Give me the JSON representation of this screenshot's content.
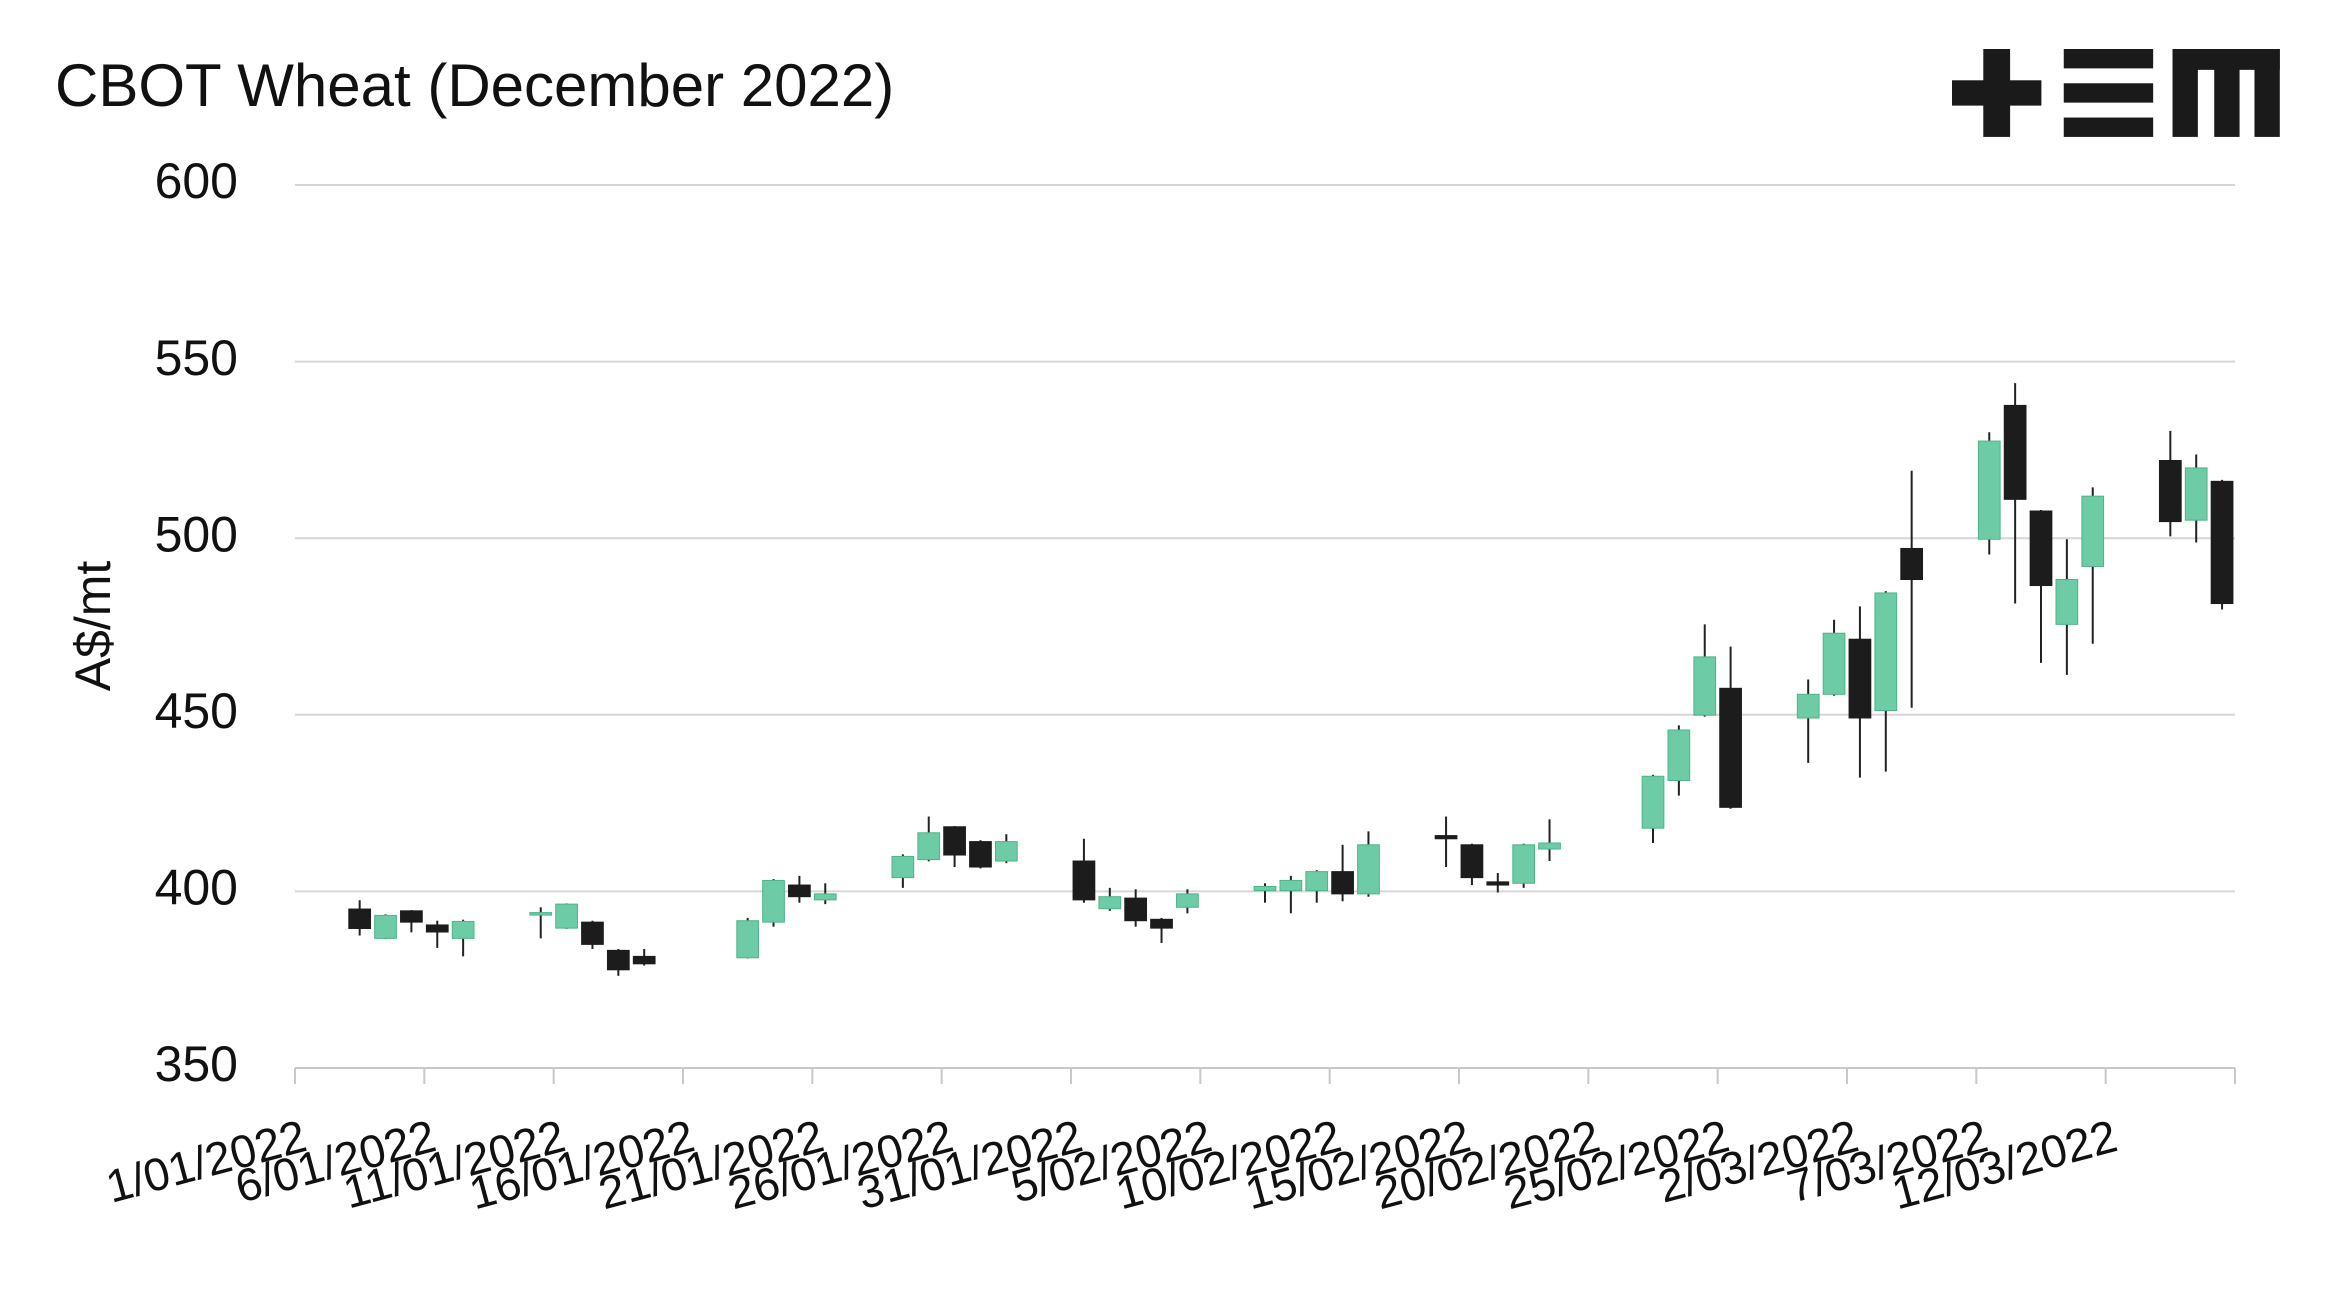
{
  "chart_data": {
    "type": "candlestick",
    "title": "CBOT Wheat (December 2022)",
    "y_label": "A$/mt",
    "x": [
      "2022-01-03",
      "2022-01-04",
      "2022-01-05",
      "2022-01-06",
      "2022-01-07",
      "2022-01-10",
      "2022-01-11",
      "2022-01-12",
      "2022-01-13",
      "2022-01-14",
      "2022-01-18",
      "2022-01-19",
      "2022-01-20",
      "2022-01-21",
      "2022-01-24",
      "2022-01-25",
      "2022-01-26",
      "2022-01-27",
      "2022-01-28",
      "2022-01-31",
      "2022-02-01",
      "2022-02-02",
      "2022-02-03",
      "2022-02-04",
      "2022-02-07",
      "2022-02-08",
      "2022-02-09",
      "2022-02-10",
      "2022-02-11",
      "2022-02-14",
      "2022-02-15",
      "2022-02-16",
      "2022-02-17",
      "2022-02-18",
      "2022-02-22",
      "2022-02-23",
      "2022-02-24",
      "2022-02-25",
      "2022-02-28",
      "2022-03-01",
      "2022-03-02",
      "2022-03-03",
      "2022-03-04",
      "2022-03-07",
      "2022-03-08",
      "2022-03-09",
      "2022-03-10",
      "2022-03-11",
      "2022-03-14",
      "2022-03-15",
      "2022-03-16"
    ],
    "open": [
      395,
      386.7,
      394.5,
      390.5,
      386.7,
      393.5,
      389.6,
      391.3,
      383.3,
      381.6,
      381.2,
      391.3,
      401.8,
      397.6,
      403.9,
      409,
      418.3,
      414.1,
      408.6,
      408.6,
      395.1,
      398.1,
      392.1,
      395.5,
      400.2,
      400.2,
      400.2,
      405.6,
      399.3,
      415.8,
      413.2,
      402.7,
      402.3,
      412,
      417.9,
      431.4,
      449.9,
      457.5,
      449.1,
      455.8,
      471.4,
      451.2,
      497.1,
      499.7,
      537.6,
      507.7,
      475.6,
      492,
      522,
      505.1,
      516.1
    ],
    "high": [
      397.5,
      393.5,
      394.7,
      391.7,
      392,
      395.5,
      396.6,
      391.7,
      383.7,
      383.7,
      392.5,
      403.5,
      404.4,
      402.3,
      410.5,
      421.2,
      418.5,
      414.5,
      416.2,
      414.9,
      401,
      400.6,
      392.5,
      400.6,
      402.3,
      404.4,
      406,
      413.2,
      417,
      421.2,
      413.5,
      405.2,
      413.5,
      420.4,
      433,
      447,
      475.6,
      469.3,
      460,
      476.9,
      480.7,
      485,
      519.1,
      530,
      543.9,
      508,
      499.7,
      514.4,
      530.4,
      523.7,
      516.5
    ],
    "low": [
      387.5,
      386.5,
      388.4,
      384,
      381.6,
      386.7,
      389.4,
      383.7,
      376.1,
      379,
      381,
      390,
      396.8,
      396.4,
      401,
      408.5,
      406.9,
      406.5,
      408,
      396.8,
      394.5,
      390,
      385.4,
      393.8,
      396.8,
      393.8,
      396.8,
      397.2,
      398.5,
      406.9,
      401.8,
      399.7,
      401,
      408.6,
      413.7,
      427.1,
      449.5,
      423.4,
      436.4,
      455.4,
      432.2,
      433.9,
      452,
      495.4,
      481.5,
      464.7,
      461.3,
      470.1,
      500.5,
      498.8,
      479.8
    ],
    "close": [
      389.5,
      393.2,
      391.3,
      388.5,
      391.5,
      394,
      396.4,
      385,
      377.8,
      379.5,
      391.7,
      403.1,
      398.5,
      399.3,
      409.9,
      416.6,
      410.3,
      406.9,
      414.1,
      397.6,
      398.5,
      391.7,
      389.6,
      399.3,
      401.4,
      403.1,
      405.6,
      399.3,
      413.2,
      414.9,
      403.9,
      401.8,
      413.2,
      413.7,
      432.6,
      445.7,
      466.4,
      423.8,
      455.8,
      473.1,
      449.1,
      484.5,
      488.3,
      527.5,
      511,
      486.6,
      488.3,
      511.9,
      504.7,
      519.9,
      481.5
    ],
    "up_color": "#6dcba5",
    "down_color": "#1c1c1c",
    "xlim": [
      "2022-01-01",
      "2022-03-17"
    ],
    "xticks": [
      {
        "value": "2022-01-01",
        "label": "1/01/2022"
      },
      {
        "value": "2022-01-06",
        "label": "6/01/2022"
      },
      {
        "value": "2022-01-11",
        "label": "11/01/2022"
      },
      {
        "value": "2022-01-16",
        "label": "16/01/2022"
      },
      {
        "value": "2022-01-21",
        "label": "21/01/2022"
      },
      {
        "value": "2022-01-26",
        "label": "26/01/2022"
      },
      {
        "value": "2022-01-31",
        "label": "31/01/2022"
      },
      {
        "value": "2022-02-05",
        "label": "5/02/2022"
      },
      {
        "value": "2022-02-10",
        "label": "10/02/2022"
      },
      {
        "value": "2022-02-15",
        "label": "15/02/2022"
      },
      {
        "value": "2022-02-20",
        "label": "20/02/2022"
      },
      {
        "value": "2022-02-25",
        "label": "25/02/2022"
      },
      {
        "value": "2022-03-02",
        "label": "2/03/2022"
      },
      {
        "value": "2022-03-07",
        "label": "7/03/2022"
      },
      {
        "value": "2022-03-12",
        "label": "12/03/2022"
      }
    ],
    "ylim": [
      350,
      600
    ],
    "yticks": [
      350,
      400,
      450,
      500,
      550,
      600
    ],
    "grid": true
  }
}
